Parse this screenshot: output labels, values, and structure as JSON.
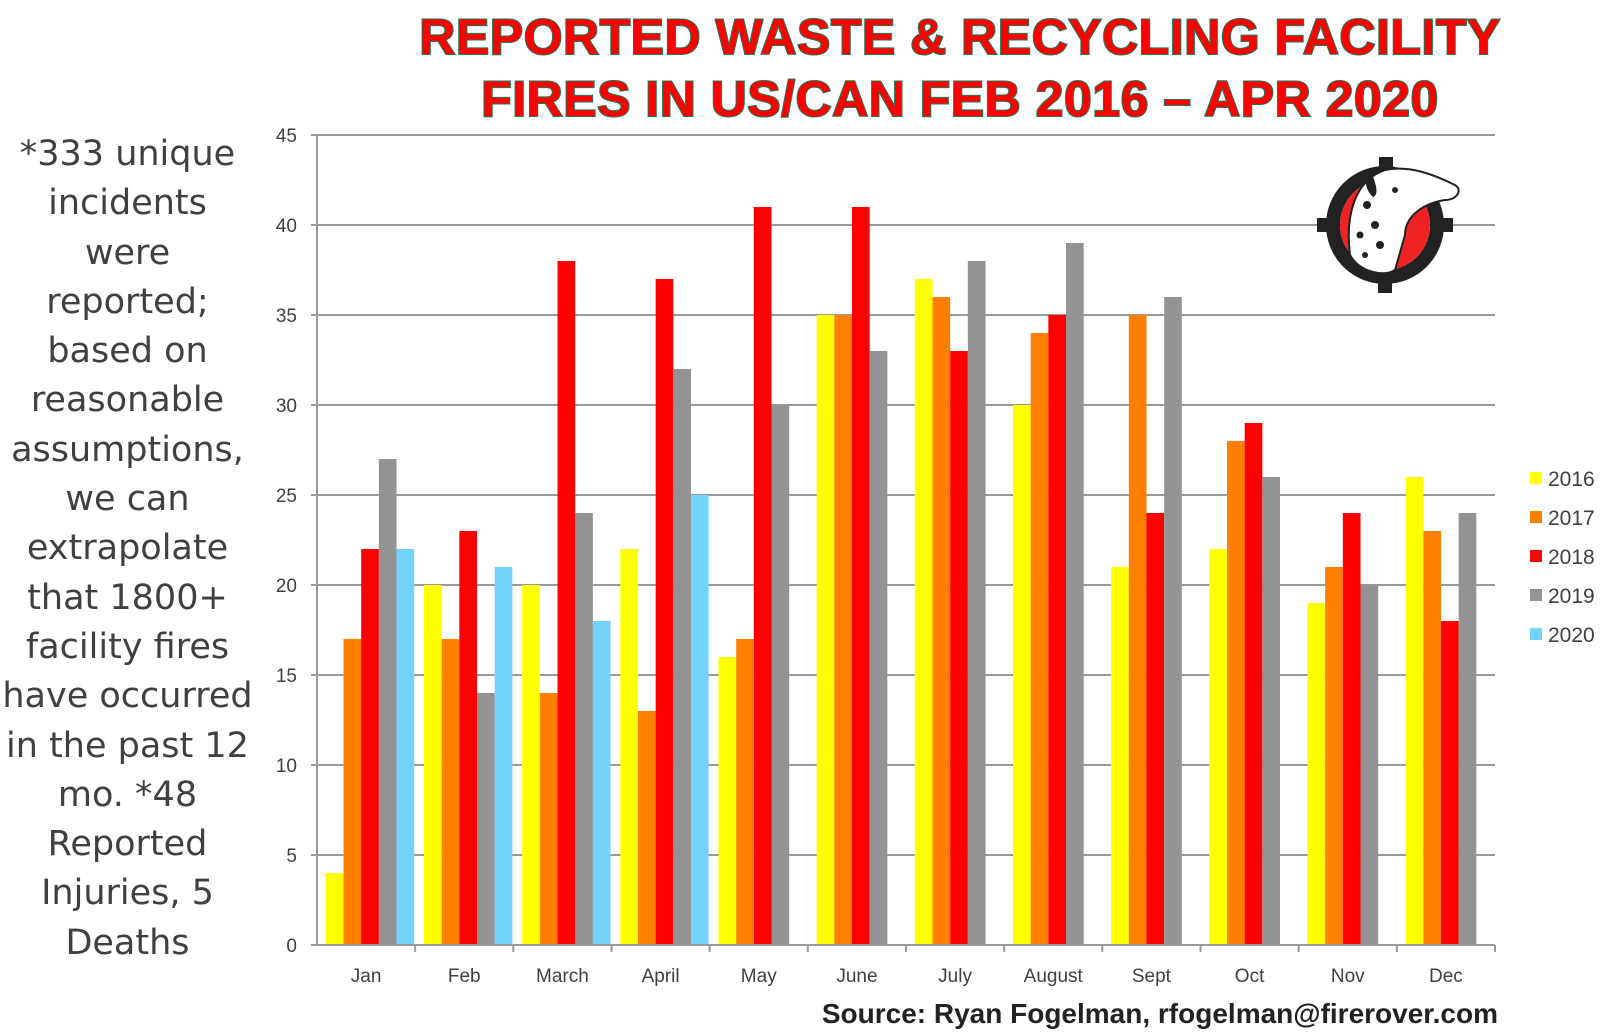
{
  "title_lines": [
    "REPORTED WASTE & RECYCLING FACILITY",
    "FIRES IN US/CAN FEB 2016 – APR 2020"
  ],
  "side_note": "*333 unique incidents were reported; based on reasonable assumptions, we can extrapolate that 1800+ facility fires have occurred in the past 12 mo. *48 Reported Injuries, 5 Deaths",
  "source": "Source: Ryan Fogelman, rfogelman@firerover.com",
  "logo": {
    "icon": "dalmatian-crosshair-logo",
    "colors": [
      "#ee2222",
      "#222222"
    ]
  },
  "chart_data": {
    "type": "bar",
    "title": "REPORTED WASTE & RECYCLING FACILITY FIRES IN US/CAN FEB 2016 – APR 2020",
    "xlabel": "",
    "ylabel": "",
    "ylim": [
      0,
      45
    ],
    "yticks": [
      0,
      5,
      10,
      15,
      20,
      25,
      30,
      35,
      40,
      45
    ],
    "grid": true,
    "legend_position": "right",
    "categories": [
      "Jan",
      "Feb",
      "March",
      "April",
      "May",
      "June",
      "July",
      "August",
      "Sept",
      "Oct",
      "Nov",
      "Dec"
    ],
    "series": [
      {
        "name": "2016",
        "color": "#ffff00",
        "values": [
          4,
          20,
          20,
          22,
          16,
          35,
          37,
          30,
          21,
          22,
          19,
          26
        ]
      },
      {
        "name": "2017",
        "color": "#ff8000",
        "values": [
          17,
          17,
          14,
          13,
          17,
          35,
          36,
          34,
          35,
          28,
          21,
          23
        ]
      },
      {
        "name": "2018",
        "color": "#ff0000",
        "values": [
          22,
          23,
          38,
          37,
          41,
          41,
          33,
          35,
          24,
          29,
          24,
          18
        ]
      },
      {
        "name": "2019",
        "color": "#939393",
        "values": [
          27,
          14,
          24,
          32,
          30,
          33,
          38,
          39,
          36,
          26,
          20,
          24
        ]
      },
      {
        "name": "2020",
        "color": "#74d3fc",
        "values": [
          22,
          21,
          18,
          25,
          null,
          null,
          null,
          null,
          null,
          null,
          null,
          null
        ]
      }
    ]
  }
}
